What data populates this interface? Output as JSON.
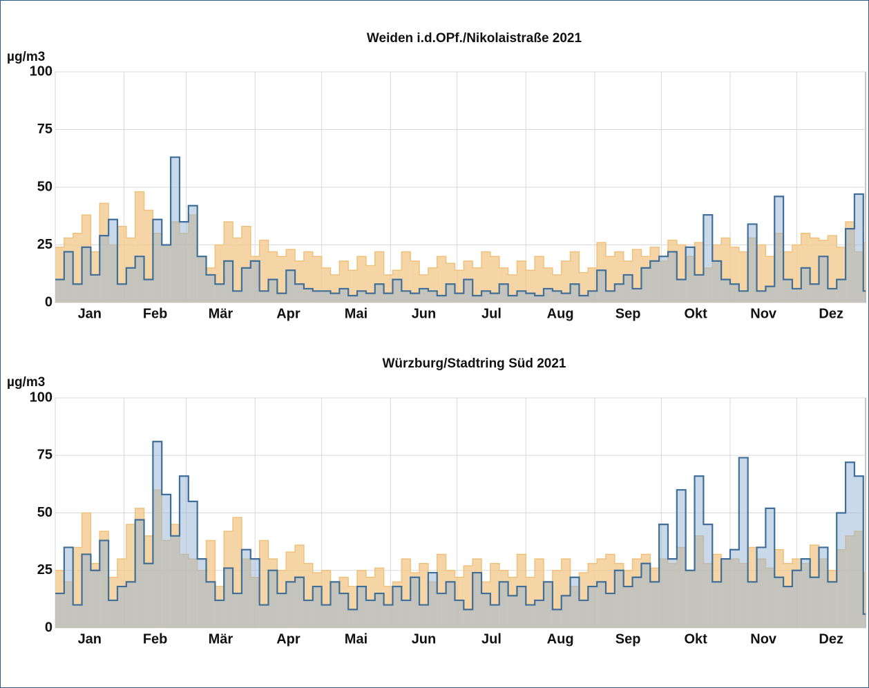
{
  "chart_data": [
    {
      "type": "step-area",
      "title": "Weiden i.d.OPf./Nikolaistraße 2021",
      "ylabel": "µg/m3",
      "x": [
        0,
        4,
        8,
        12,
        16,
        20,
        24,
        28,
        32,
        36,
        40,
        44,
        48,
        52,
        56,
        60,
        64,
        68,
        72,
        76,
        80,
        84,
        88,
        92,
        96,
        100,
        104,
        108,
        112,
        116,
        120,
        124,
        128,
        132,
        136,
        140,
        144,
        148,
        152,
        156,
        160,
        164,
        168,
        172,
        176,
        180,
        184,
        188,
        192,
        196,
        200,
        204,
        208,
        212,
        216,
        220,
        224,
        228,
        232,
        236,
        240,
        244,
        248,
        252,
        256,
        260,
        264,
        268,
        272,
        276,
        280,
        284,
        288,
        292,
        296,
        300,
        304,
        308,
        312,
        316,
        320,
        324,
        328,
        332,
        336,
        340,
        344,
        348,
        352,
        356,
        360,
        364
      ],
      "xlim": [
        0,
        365
      ],
      "xticks": [
        {
          "value": 0,
          "label": "Jan"
        },
        {
          "value": 31,
          "label": "Feb"
        },
        {
          "value": 59,
          "label": "Mär"
        },
        {
          "value": 90,
          "label": "Apr"
        },
        {
          "value": 120,
          "label": "Mai"
        },
        {
          "value": 151,
          "label": "Jun"
        },
        {
          "value": 181,
          "label": "Jul"
        },
        {
          "value": 212,
          "label": "Aug"
        },
        {
          "value": 243,
          "label": "Sep"
        },
        {
          "value": 273,
          "label": "Okt"
        },
        {
          "value": 304,
          "label": "Nov"
        },
        {
          "value": 334,
          "label": "Dez"
        }
      ],
      "ylim": [
        0,
        100
      ],
      "yticks": [
        0,
        25,
        50,
        75,
        100
      ],
      "grid": true,
      "series": [
        {
          "color": "#f0c17c",
          "values": [
            24,
            28,
            30,
            38,
            22,
            43,
            25,
            33,
            28,
            48,
            40,
            30,
            25,
            35,
            30,
            38,
            20,
            15,
            25,
            35,
            28,
            33,
            20,
            27,
            22,
            20,
            23,
            18,
            22,
            20,
            15,
            12,
            18,
            14,
            20,
            16,
            22,
            12,
            14,
            22,
            18,
            12,
            15,
            20,
            17,
            14,
            18,
            15,
            22,
            20,
            15,
            12,
            18,
            14,
            20,
            15,
            12,
            18,
            22,
            13,
            15,
            26,
            20,
            22,
            18,
            23,
            20,
            24,
            18,
            27,
            25,
            20,
            26,
            15,
            25,
            28,
            24,
            22,
            28,
            25,
            20,
            30,
            22,
            25,
            30,
            28,
            27,
            29,
            24,
            35,
            22,
            26
          ]
        },
        {
          "color": "#3f6f98",
          "values": [
            10,
            22,
            8,
            24,
            12,
            29,
            36,
            8,
            15,
            20,
            10,
            36,
            25,
            63,
            35,
            42,
            20,
            12,
            8,
            18,
            5,
            15,
            18,
            5,
            10,
            4,
            14,
            8,
            6,
            5,
            5,
            4,
            6,
            3,
            5,
            4,
            8,
            4,
            10,
            5,
            4,
            6,
            5,
            3,
            8,
            4,
            10,
            3,
            5,
            4,
            8,
            3,
            5,
            4,
            3,
            6,
            5,
            4,
            8,
            3,
            5,
            14,
            5,
            8,
            12,
            6,
            15,
            18,
            20,
            22,
            10,
            24,
            12,
            38,
            18,
            10,
            8,
            5,
            34,
            5,
            7,
            46,
            10,
            6,
            15,
            8,
            20,
            6,
            10,
            32,
            47,
            5
          ]
        }
      ]
    },
    {
      "type": "step-area",
      "title": "Würzburg/Stadtring Süd 2021",
      "ylabel": "µg/m3",
      "x": [
        0,
        4,
        8,
        12,
        16,
        20,
        24,
        28,
        32,
        36,
        40,
        44,
        48,
        52,
        56,
        60,
        64,
        68,
        72,
        76,
        80,
        84,
        88,
        92,
        96,
        100,
        104,
        108,
        112,
        116,
        120,
        124,
        128,
        132,
        136,
        140,
        144,
        148,
        152,
        156,
        160,
        164,
        168,
        172,
        176,
        180,
        184,
        188,
        192,
        196,
        200,
        204,
        208,
        212,
        216,
        220,
        224,
        228,
        232,
        236,
        240,
        244,
        248,
        252,
        256,
        260,
        264,
        268,
        272,
        276,
        280,
        284,
        288,
        292,
        296,
        300,
        304,
        308,
        312,
        316,
        320,
        324,
        328,
        332,
        336,
        340,
        344,
        348,
        352,
        356,
        360,
        364
      ],
      "xlim": [
        0,
        365
      ],
      "xticks": [
        {
          "value": 0,
          "label": "Jan"
        },
        {
          "value": 31,
          "label": "Feb"
        },
        {
          "value": 59,
          "label": "Mär"
        },
        {
          "value": 90,
          "label": "Apr"
        },
        {
          "value": 120,
          "label": "Mai"
        },
        {
          "value": 151,
          "label": "Jun"
        },
        {
          "value": 181,
          "label": "Jul"
        },
        {
          "value": 212,
          "label": "Aug"
        },
        {
          "value": 243,
          "label": "Sep"
        },
        {
          "value": 273,
          "label": "Okt"
        },
        {
          "value": 304,
          "label": "Nov"
        },
        {
          "value": 334,
          "label": "Dez"
        }
      ],
      "ylim": [
        0,
        100
      ],
      "yticks": [
        0,
        25,
        50,
        75,
        100
      ],
      "grid": true,
      "series": [
        {
          "color": "#f0c17c",
          "values": [
            25,
            20,
            35,
            50,
            28,
            42,
            22,
            30,
            45,
            52,
            40,
            60,
            38,
            45,
            32,
            30,
            25,
            38,
            18,
            42,
            48,
            30,
            22,
            38,
            30,
            25,
            33,
            36,
            28,
            24,
            25,
            20,
            22,
            18,
            25,
            22,
            26,
            18,
            20,
            30,
            24,
            28,
            20,
            32,
            25,
            22,
            27,
            30,
            20,
            28,
            25,
            22,
            32,
            22,
            30,
            20,
            25,
            30,
            18,
            24,
            28,
            30,
            32,
            28,
            25,
            30,
            32,
            26,
            30,
            28,
            35,
            25,
            40,
            28,
            32,
            30,
            30,
            28,
            35,
            30,
            26,
            34,
            28,
            30,
            28,
            36,
            30,
            25,
            34,
            40,
            42,
            24
          ]
        },
        {
          "color": "#3f6f98",
          "values": [
            15,
            35,
            10,
            32,
            25,
            38,
            12,
            18,
            20,
            47,
            28,
            81,
            58,
            40,
            66,
            55,
            30,
            20,
            12,
            26,
            15,
            34,
            30,
            10,
            25,
            15,
            20,
            22,
            12,
            18,
            10,
            20,
            15,
            8,
            18,
            12,
            15,
            10,
            18,
            12,
            22,
            10,
            24,
            15,
            20,
            12,
            8,
            24,
            15,
            10,
            20,
            14,
            18,
            10,
            12,
            20,
            8,
            14,
            22,
            12,
            18,
            20,
            15,
            25,
            18,
            22,
            28,
            20,
            45,
            30,
            60,
            25,
            66,
            45,
            20,
            30,
            34,
            74,
            20,
            35,
            52,
            22,
            18,
            25,
            30,
            22,
            35,
            20,
            50,
            72,
            66,
            6
          ]
        }
      ]
    }
  ]
}
